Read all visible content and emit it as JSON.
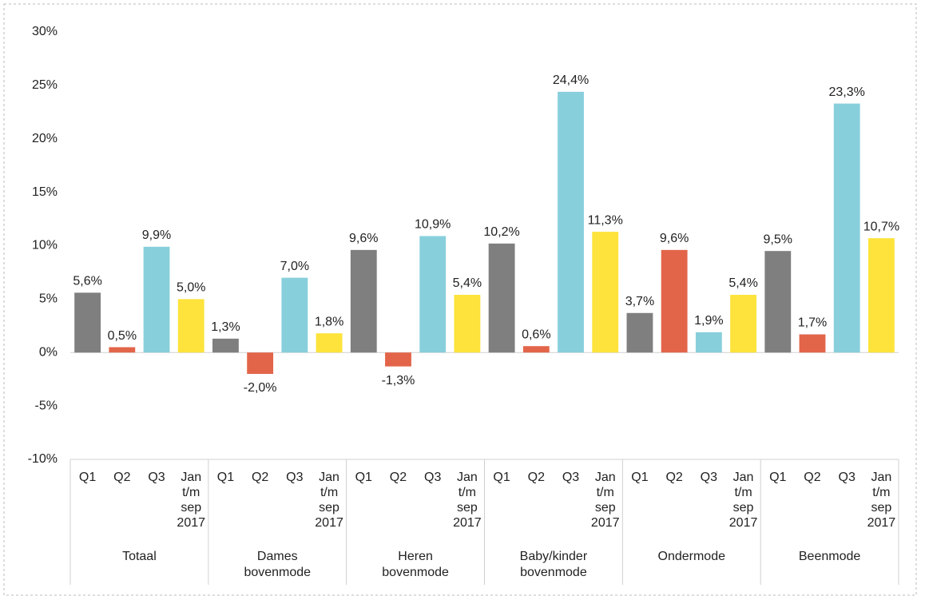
{
  "chart_data": {
    "type": "bar",
    "categories": [
      "Totaal",
      "Dames bovenmode",
      "Heren bovenmode",
      "Baby/kinder bovenmode",
      "Ondermode",
      "Beenmode"
    ],
    "series": [
      {
        "name": "Q1",
        "color": "#7f7f7f",
        "values": [
          5.6,
          1.3,
          9.6,
          10.2,
          3.7,
          9.5
        ],
        "value_labels": [
          "5,6%",
          "1,3%",
          "9,6%",
          "10,2%",
          "3,7%",
          "9,5%"
        ]
      },
      {
        "name": "Q2",
        "color": "#e2654a",
        "values": [
          0.5,
          -2.0,
          -1.3,
          0.6,
          9.6,
          1.7
        ],
        "value_labels": [
          "0,5%",
          "-2,0%",
          "-1,3%",
          "0,6%",
          "9,6%",
          "1,7%"
        ]
      },
      {
        "name": "Q3",
        "color": "#88cfdc",
        "values": [
          9.9,
          7.0,
          10.9,
          24.4,
          1.9,
          23.3
        ],
        "value_labels": [
          "9,9%",
          "7,0%",
          "10,9%",
          "24,4%",
          "1,9%",
          "23,3%"
        ]
      },
      {
        "name": "Jan t/m sep 2017",
        "color": "#fde33b",
        "values": [
          5.0,
          1.8,
          5.4,
          11.3,
          5.4,
          10.7
        ],
        "value_labels": [
          "5,0%",
          "1,8%",
          "5,4%",
          "11,3%",
          "5,4%",
          "10,7%"
        ]
      }
    ],
    "ylim": [
      -10,
      30
    ],
    "yticks": [
      {
        "value": -10,
        "label": "-10%"
      },
      {
        "value": -5,
        "label": "-5%"
      },
      {
        "value": 0,
        "label": "0%"
      },
      {
        "value": 5,
        "label": "5%"
      },
      {
        "value": 10,
        "label": "10%"
      },
      {
        "value": 15,
        "label": "15%"
      },
      {
        "value": 20,
        "label": "20%"
      },
      {
        "value": 25,
        "label": "25%"
      },
      {
        "value": 30,
        "label": "30%"
      }
    ],
    "grid": false
  }
}
